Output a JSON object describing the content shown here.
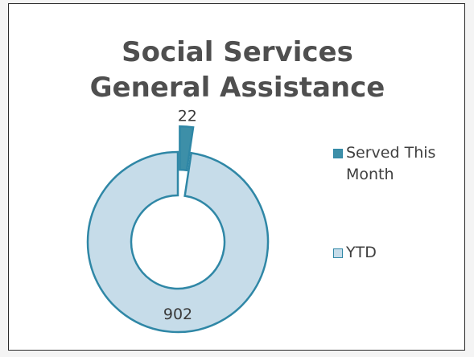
{
  "chart_data": {
    "type": "pie",
    "variant": "doughnut",
    "title_lines": [
      "Social Services",
      "General Assistance"
    ],
    "series": [
      {
        "name": "",
        "categories": [
          "Served This Month",
          "YTD"
        ],
        "values": [
          22,
          902
        ],
        "data_labels": [
          "22",
          "902"
        ]
      }
    ],
    "exploded_category": "Served This Month",
    "legend": {
      "placement": "right",
      "entries": [
        {
          "label": "Served This Month",
          "color": "#3d8fa8"
        },
        {
          "label": "YTD",
          "color": "#c6dce9"
        }
      ]
    },
    "colors": {
      "served": "#3d8fa8",
      "ytd": "#c6dce9",
      "outline": "#2f87a6",
      "title": "#4f4f4f",
      "frame": "#2b2b2b"
    }
  }
}
